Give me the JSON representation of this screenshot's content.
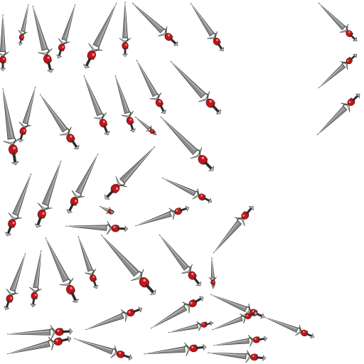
{
  "sprite_sheet": {
    "subject": "dagger-sprite",
    "frame_count": 48,
    "colors": {
      "background": "#ffffff",
      "blade": "#8a8a8a",
      "blade_dark": "#2e2e2e",
      "blade_light": "#d8d8d8",
      "gem": "#c0161c",
      "gem_dark": "#5a0a0c",
      "gem_highlight": "#ff8a8a",
      "wrap": "#3d5a3a",
      "metal": "#b8b8b8"
    }
  }
}
